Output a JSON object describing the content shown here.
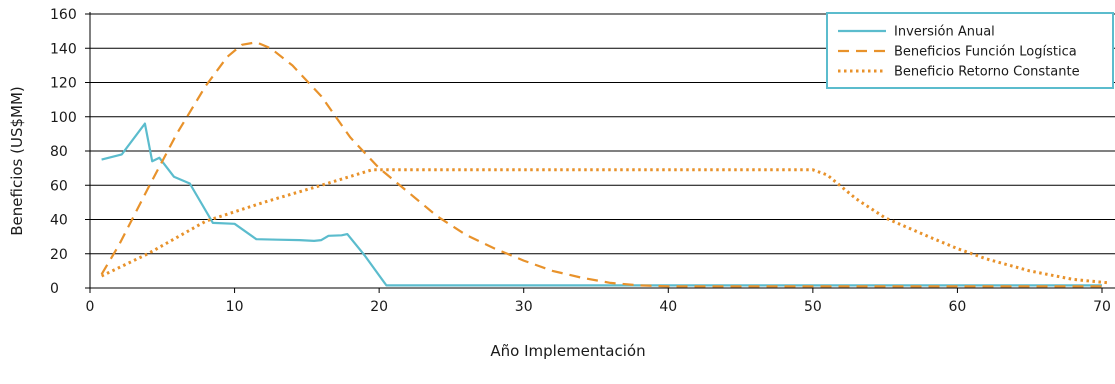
{
  "chart_data": {
    "type": "line",
    "title": "",
    "xlabel": "Año Implementación",
    "ylabel": "Beneficios (US$MM)",
    "xlim": [
      0,
      70
    ],
    "ylim": [
      0,
      160
    ],
    "xticks": [
      0,
      10,
      20,
      30,
      40,
      50,
      60,
      70
    ],
    "yticks": [
      0,
      20,
      40,
      60,
      80,
      100,
      120,
      140,
      160
    ],
    "grid": "horizontal",
    "legend_position": "top-right",
    "series": [
      {
        "name": "Inversión Anual",
        "style": "solid",
        "color": "#5bbccd",
        "points": [
          [
            0.8,
            75
          ],
          [
            2.2,
            78
          ],
          [
            3.8,
            96
          ],
          [
            4.3,
            74
          ],
          [
            4.8,
            76
          ],
          [
            5.8,
            65
          ],
          [
            6.9,
            61
          ],
          [
            8.5,
            38
          ],
          [
            10.0,
            37.5
          ],
          [
            11.5,
            28.5
          ],
          [
            13.0,
            28.2
          ],
          [
            14.5,
            28.0
          ],
          [
            15.5,
            27.5
          ],
          [
            16.0,
            28.0
          ],
          [
            16.5,
            30.5
          ],
          [
            17.4,
            30.8
          ],
          [
            17.8,
            31.5
          ],
          [
            19.0,
            19.0
          ],
          [
            20.5,
            1.5
          ],
          [
            30.0,
            1.5
          ],
          [
            40.0,
            1.5
          ],
          [
            50.0,
            1.5
          ],
          [
            60.0,
            1.5
          ],
          [
            70.0,
            1.5
          ]
        ]
      },
      {
        "name": "Beneficios Función Logística",
        "style": "dashed",
        "color": "#e8922b",
        "points": [
          [
            0.8,
            8
          ],
          [
            2,
            25
          ],
          [
            4,
            58
          ],
          [
            6,
            90
          ],
          [
            8,
            118
          ],
          [
            9.5,
            135
          ],
          [
            10.5,
            142
          ],
          [
            11.5,
            143.5
          ],
          [
            12.5,
            140
          ],
          [
            14,
            130
          ],
          [
            16,
            112
          ],
          [
            18,
            88
          ],
          [
            20,
            70
          ],
          [
            22,
            56
          ],
          [
            24,
            42
          ],
          [
            26,
            31
          ],
          [
            28,
            23
          ],
          [
            30,
            16
          ],
          [
            32,
            10
          ],
          [
            34,
            6
          ],
          [
            36,
            3
          ],
          [
            38,
            1.5
          ],
          [
            40,
            1
          ],
          [
            45,
            1
          ],
          [
            55,
            1
          ],
          [
            70,
            1
          ]
        ]
      },
      {
        "name": "Beneficio Retorno Constante",
        "style": "dotted",
        "color": "#e8922b",
        "points": [
          [
            0.8,
            7
          ],
          [
            4,
            20
          ],
          [
            8,
            39
          ],
          [
            12,
            50
          ],
          [
            16,
            60
          ],
          [
            19.5,
            69
          ],
          [
            25,
            69
          ],
          [
            30,
            69
          ],
          [
            35,
            69
          ],
          [
            40,
            69
          ],
          [
            45,
            69
          ],
          [
            50,
            69
          ],
          [
            51,
            66
          ],
          [
            53,
            52
          ],
          [
            55,
            41
          ],
          [
            58,
            30
          ],
          [
            60,
            23
          ],
          [
            62,
            17
          ],
          [
            65,
            10
          ],
          [
            68,
            5
          ],
          [
            70.5,
            3
          ]
        ]
      }
    ]
  }
}
